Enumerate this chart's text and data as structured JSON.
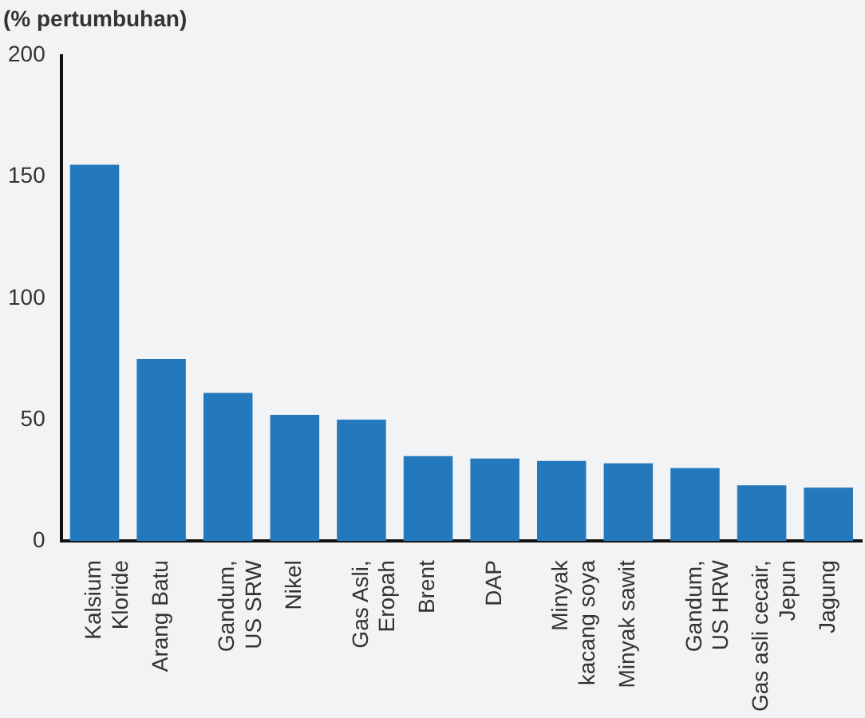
{
  "chart_data": {
    "type": "bar",
    "ylabel": "(% pertumbuhan)",
    "categories": [
      "Kalsium Kloride",
      "Arang Batu",
      "Gandum, US SRW",
      "Nikel",
      "Gas Asli, Eropah",
      "Brent",
      "DAP",
      "Minyak kacang soya",
      "Minyak sawit",
      "Gandum, US HRW",
      "Gas asli cecair, Jepun",
      "Jagung"
    ],
    "values": [
      155,
      75,
      61,
      52,
      50,
      35,
      34,
      33,
      32,
      30,
      23,
      22
    ],
    "color": "#2479bd",
    "ylim": [
      0,
      200
    ],
    "yticks": [
      0,
      50,
      100,
      150,
      200
    ],
    "grid": false,
    "legend": false
  }
}
